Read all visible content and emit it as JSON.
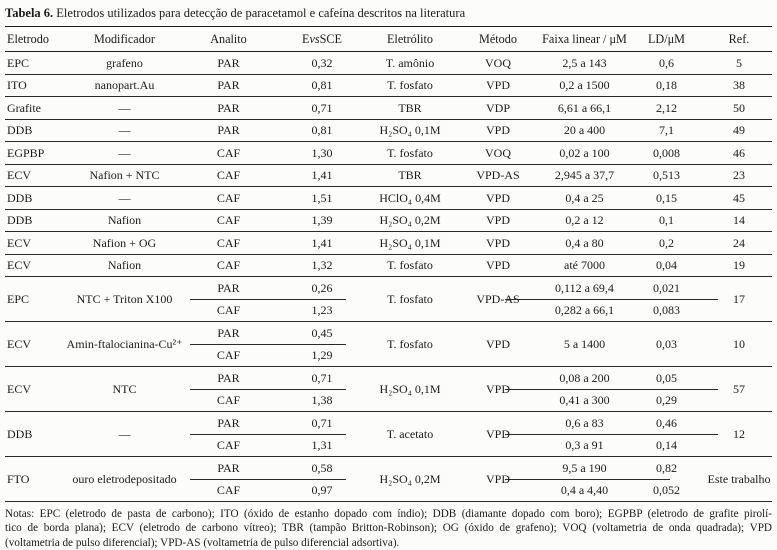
{
  "title": {
    "bold": "Tabela 6.",
    "rest": " Eletrodos utilizados para detecção de paracetamol e cafeína descritos na literatura"
  },
  "colors": {
    "ink": "#1c1c1c",
    "background": "#fcfcfa"
  },
  "table": {
    "headers": {
      "eletrodo": "Eletrodo",
      "modificador": "Modificador",
      "analito": "Analito",
      "e_pre": "E ",
      "e_italic": "vs",
      "e_post": " SCE",
      "eletrolito": "Eletrólito",
      "metodo": "Método",
      "faixa": "Faixa linear / μM",
      "ld": "LD/μM",
      "ref": "Ref."
    },
    "rows": [
      {
        "type": "single",
        "eletrodo": "EPC",
        "modificador": "grafeno",
        "analito": "PAR",
        "e": "0,32",
        "eletrolito": "T. amônio",
        "metodo": "VOQ",
        "faixa": "2,5 a 143",
        "ld": "0,6",
        "ref": "5"
      },
      {
        "type": "single",
        "eletrodo": "ITO",
        "modificador": "nanopart.Au",
        "analito": "PAR",
        "e": "0,81",
        "eletrolito": "T. fosfato",
        "metodo": "VPD",
        "faixa": "0,2 a 1500",
        "ld": "0,18",
        "ref": "38"
      },
      {
        "type": "single",
        "eletrodo": "Grafite",
        "modificador": "—",
        "analito": "PAR",
        "e": "0,71",
        "eletrolito": "TBR",
        "metodo": "VDP",
        "faixa": "6,61 a 66,1",
        "ld": "2,12",
        "ref": "50"
      },
      {
        "type": "single",
        "eletrodo": "DDB",
        "modificador": "—",
        "analito": "PAR",
        "e": "0,81",
        "eletrolito": "H₂SO₄ 0,1M",
        "metodo": "VPD",
        "faixa": "20 a 400",
        "ld": "7,1",
        "ref": "49"
      },
      {
        "type": "single",
        "eletrodo": "EGPBP",
        "modificador": "—",
        "analito": "CAF",
        "e": "1,30",
        "eletrolito": "T. fosfato",
        "metodo": "VOQ",
        "faixa": "0,02 a 100",
        "ld": "0,008",
        "ref": "46"
      },
      {
        "type": "single",
        "eletrodo": "ECV",
        "modificador": "Nafion + NTC",
        "analito": "CAF",
        "e": "1,41",
        "eletrolito": "TBR",
        "metodo": "VPD-AS",
        "faixa": "2,945 a 37,7",
        "ld": "0,513",
        "ref": "23"
      },
      {
        "type": "single",
        "eletrodo": "DDB",
        "modificador": "—",
        "analito": "CAF",
        "e": "1,51",
        "eletrolito": "HClO₄ 0,4M",
        "metodo": "VPD",
        "faixa": "0,4 a 25",
        "ld": "0,15",
        "ref": "45"
      },
      {
        "type": "single",
        "eletrodo": "DDB",
        "modificador": "Nafion",
        "analito": "CAF",
        "e": "1,39",
        "eletrolito": "H₂SO₄ 0,2M",
        "metodo": "VPD",
        "faixa": "0,2 a 12",
        "ld": "0,1",
        "ref": "14"
      },
      {
        "type": "single",
        "eletrodo": "ECV",
        "modificador": "Nafion + OG",
        "analito": "CAF",
        "e": "1,41",
        "eletrolito": "H₂SO₄ 0,1M",
        "metodo": "VPD",
        "faixa": "0,4 a 80",
        "ld": "0,2",
        "ref": "24"
      },
      {
        "type": "single",
        "eletrodo": "ECV",
        "modificador": "Nafion",
        "analito": "CAF",
        "e": "1,32",
        "eletrolito": "T. fosfato",
        "metodo": "VPD",
        "faixa": "até 7000",
        "ld": "0,04",
        "ref": "19"
      },
      {
        "type": "group",
        "eletrodo": "EPC",
        "modificador": "NTC + Triton X100",
        "eletrolito": "T. fosfato",
        "metodo": "VPD-AS",
        "ref": "17",
        "merged_results": false,
        "divider_right": "long",
        "subrows": [
          {
            "analito": "PAR",
            "e": "0,26",
            "faixa": "0,112 a 69,4",
            "ld": "0,021"
          },
          {
            "analito": "CAF",
            "e": "1,23",
            "faixa": "0,282 a 66,1",
            "ld": "0,083"
          }
        ]
      },
      {
        "type": "group",
        "eletrodo": "ECV",
        "modificador": "Amin-ftalocianina-Cu²⁺",
        "eletrolito": "T. fosfato",
        "metodo": "VPD",
        "ref": "10",
        "merged_results": true,
        "faixa": "5 a 1400",
        "ld": "0,03",
        "divider_right": "none",
        "subrows": [
          {
            "analito": "PAR",
            "e": "0,45"
          },
          {
            "analito": "CAF",
            "e": "1,29"
          }
        ]
      },
      {
        "type": "group",
        "eletrodo": "ECV",
        "modificador": "NTC",
        "eletrolito": "H₂SO₄ 0,1M",
        "metodo": "VPD",
        "ref": "57",
        "merged_results": false,
        "divider_right": "long",
        "subrows": [
          {
            "analito": "PAR",
            "e": "0,71",
            "faixa": "0,08 a 200",
            "ld": "0,05"
          },
          {
            "analito": "CAF",
            "e": "1,38",
            "faixa": "0,41 a 300",
            "ld": "0,29"
          }
        ]
      },
      {
        "type": "group",
        "eletrodo": "DDB",
        "modificador": "—",
        "eletrolito": "T. acetato",
        "metodo": "VPD",
        "ref": "12",
        "merged_results": false,
        "divider_right": "long",
        "subrows": [
          {
            "analito": "PAR",
            "e": "0,71",
            "faixa": "0,6 a 83",
            "ld": "0,46"
          },
          {
            "analito": "CAF",
            "e": "1,31",
            "faixa": "0,3 a 91",
            "ld": "0,14"
          }
        ]
      },
      {
        "type": "group",
        "eletrodo": "FTO",
        "modificador": "ouro eletrodepositado",
        "eletrolito": "H₂SO₄ 0,2M",
        "metodo": "VPD",
        "ref": "Este trabalho",
        "merged_results": false,
        "divider_right": "short",
        "subrows": [
          {
            "analito": "PAR",
            "e": "0,58",
            "faixa": "9,5 a 190",
            "ld": "0,82"
          },
          {
            "analito": "CAF",
            "e": "0,97",
            "faixa": "0,4 a 4,40",
            "ld": "0,052"
          }
        ]
      }
    ]
  },
  "notes": {
    "lines": [
      "Notas: EPC (eletrodo de pasta de carbono); ITO (óxido de estanho dopado com índio); DDB (diamante dopado com boro); EGPBP (eletrodo de grafite pirolí-",
      "tico de borda plana); ECV (eletrodo de carbono vítreo); TBR (tampão Britton-Robinson); OG (óxido de grafeno); VOQ (voltametria de onda quadrada); VPD",
      "(voltametria de pulso diferencial); VPD-AS (voltametria de pulso diferencial adsortiva)."
    ]
  }
}
